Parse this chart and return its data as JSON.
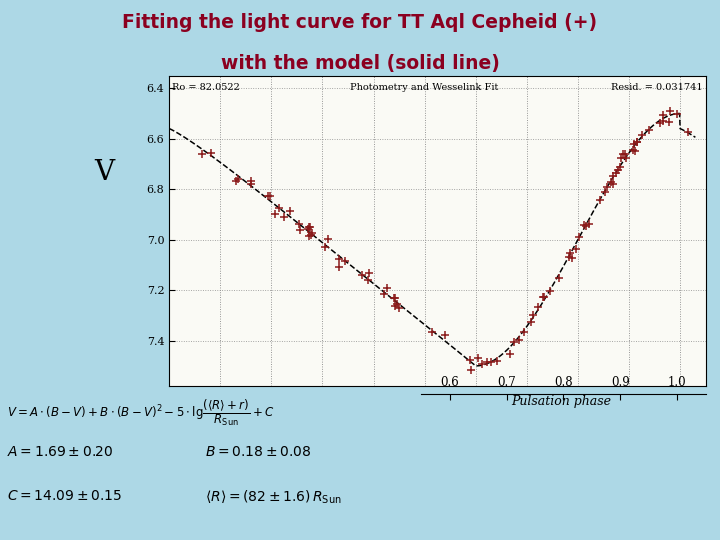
{
  "title_line1": "Fitting the light curve for TT Aql Cepheid (+)",
  "title_line2": "with the model (solid line)",
  "title_color": "#8B0020",
  "bg_color": "#ADD8E6",
  "plot_bg": "#FAFAF5",
  "header_text_left": "Ro = 82.0522",
  "header_text_center": "Photometry and Wesselink Fit",
  "header_text_right": "Resid. = 0.031741",
  "ylabel": "V",
  "xlabel_bottom": "Pulsation phase",
  "ylim": [
    6.35,
    7.58
  ],
  "xlim": [
    0.0,
    1.05
  ],
  "yticks": [
    6.4,
    6.6,
    6.8,
    7.0,
    7.2,
    7.4
  ],
  "xticks_bottom": [
    0.6,
    0.7,
    0.8,
    0.9,
    1.0
  ],
  "data_color": "#8B1A1A",
  "model_color": "#000000"
}
